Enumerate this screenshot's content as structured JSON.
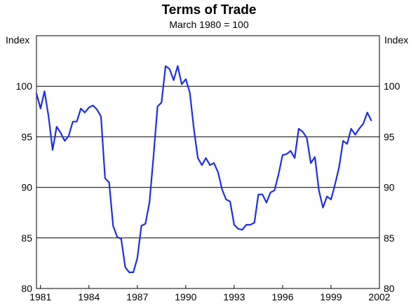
{
  "chart_data": {
    "type": "line",
    "title": "Terms of Trade",
    "subtitle": "March 1980 = 100",
    "ylabel_left": "Index",
    "ylabel_right": "Index",
    "xlim": [
      1980.75,
      2002.0
    ],
    "ylim": [
      80,
      105
    ],
    "yticks": [
      80,
      85,
      90,
      95,
      100
    ],
    "xticks": [
      {
        "value": 1981,
        "label": "1981"
      },
      {
        "value": 1984,
        "label": "1984"
      },
      {
        "value": 1987,
        "label": "1987"
      },
      {
        "value": 1990,
        "label": "1990"
      },
      {
        "value": 1993,
        "label": "1993"
      },
      {
        "value": 1996,
        "label": "1996"
      },
      {
        "value": 1999,
        "label": "1999"
      },
      {
        "value": 2002,
        "label": "2002"
      }
    ],
    "grid": "horizontal",
    "line_color": "#1f2fe0",
    "series": [
      {
        "x": [
          1980.75,
          1981.0,
          1981.25,
          1981.5,
          1981.75,
          1982.0,
          1982.25,
          1982.5,
          1982.75,
          1983.0,
          1983.25,
          1983.5,
          1983.75,
          1984.0,
          1984.25,
          1984.5,
          1984.75,
          1985.0,
          1985.25,
          1985.5,
          1985.75,
          1986.0,
          1986.25,
          1986.5,
          1986.75,
          1987.0,
          1987.25,
          1987.5,
          1987.75,
          1988.0,
          1988.25,
          1988.5,
          1988.75,
          1989.0,
          1989.25,
          1989.5,
          1989.75,
          1990.0,
          1990.25,
          1990.5,
          1990.75,
          1991.0,
          1991.25,
          1991.5,
          1991.75,
          1992.0,
          1992.25,
          1992.5,
          1992.75,
          1993.0,
          1993.25,
          1993.5,
          1993.75,
          1994.0,
          1994.25,
          1994.5,
          1994.75,
          1995.0,
          1995.25,
          1995.5,
          1995.75,
          1996.0,
          1996.25,
          1996.5,
          1996.75,
          1997.0,
          1997.25,
          1997.5,
          1997.75,
          1998.0,
          1998.25,
          1998.5,
          1998.75,
          1999.0,
          1999.25,
          1999.5,
          1999.75,
          2000.0,
          2000.25,
          2000.5,
          2000.75,
          2001.0,
          2001.25,
          2001.5
        ],
        "y": [
          99.3,
          97.8,
          99.5,
          97.0,
          93.7,
          96.0,
          95.4,
          94.6,
          95.1,
          96.5,
          96.5,
          97.8,
          97.4,
          97.9,
          98.1,
          97.7,
          97.0,
          90.9,
          90.5,
          86.2,
          85.1,
          84.9,
          82.1,
          81.6,
          81.6,
          83.0,
          86.2,
          86.4,
          88.5,
          93.0,
          98.0,
          98.4,
          102.0,
          101.7,
          100.6,
          102.0,
          100.2,
          100.7,
          99.4,
          95.8,
          92.9,
          92.2,
          92.9,
          92.2,
          92.4,
          91.5,
          89.8,
          88.8,
          88.6,
          86.3,
          85.9,
          85.8,
          86.3,
          86.3,
          86.5,
          89.3,
          89.3,
          88.5,
          89.5,
          89.7,
          91.3,
          93.2,
          93.3,
          93.6,
          92.9,
          95.8,
          95.5,
          94.9,
          92.4,
          93.0,
          89.7,
          88.0,
          89.1,
          88.8,
          90.3,
          92.0,
          94.6,
          94.3,
          95.8,
          95.2,
          95.8,
          96.3,
          97.4,
          96.6
        ]
      }
    ]
  }
}
